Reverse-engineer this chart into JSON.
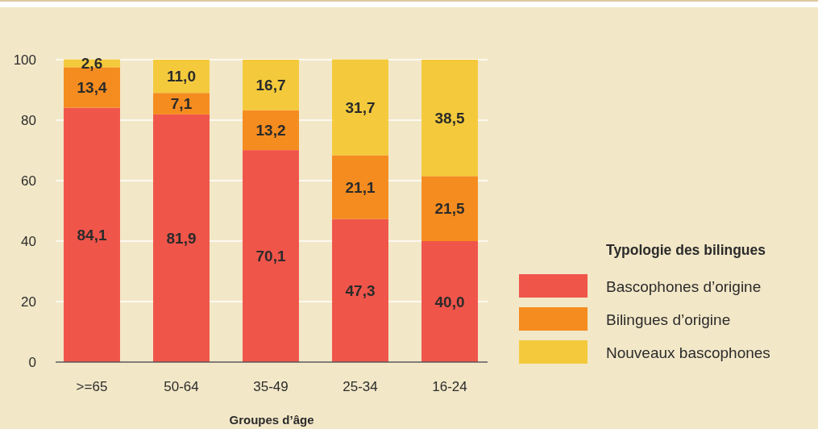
{
  "chart_data": {
    "type": "bar",
    "stacked": true,
    "categories": [
      ">=65",
      "50-64",
      "35-49",
      "25-34",
      "16-24"
    ],
    "xlabel": "Groupes d’âge",
    "legend_title": "Typologie des bilingues",
    "legend": "right",
    "grid": "y",
    "ylim": [
      0,
      100
    ],
    "yticks": [
      0,
      20,
      40,
      60,
      80,
      100
    ],
    "series": [
      {
        "name": "Bascophones d’origine",
        "color": "#f0554a",
        "values": [
          84.1,
          81.9,
          70.1,
          47.3,
          40.0
        ],
        "value_labels": [
          "84,1",
          "81,9",
          "70,1",
          "47,3",
          "40,0"
        ]
      },
      {
        "name": "Bilingues d’origine",
        "color": "#f58c1f",
        "values": [
          13.4,
          7.1,
          13.2,
          21.1,
          21.5
        ],
        "value_labels": [
          "13,4",
          "7,1",
          "13,2",
          "21,1",
          "21,5"
        ]
      },
      {
        "name": "Nouveaux bascophones",
        "color": "#f4ca3c",
        "values": [
          2.6,
          11.0,
          16.7,
          31.7,
          38.5
        ],
        "value_labels": [
          "2,6",
          "11,0",
          "16,7",
          "31,7",
          "38,5"
        ]
      }
    ]
  }
}
